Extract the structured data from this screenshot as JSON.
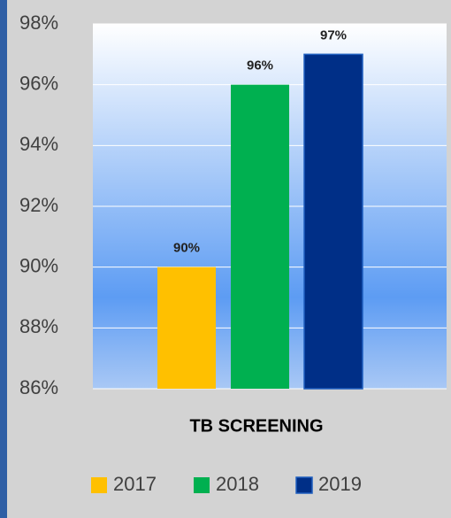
{
  "chart_data": {
    "type": "bar",
    "categories": [
      "TB SCREENING"
    ],
    "series": [
      {
        "name": "2017",
        "color": "#ffc000",
        "values": [
          90
        ],
        "value_labels": [
          "90%"
        ]
      },
      {
        "name": "2018",
        "color": "#00b050",
        "values": [
          96
        ],
        "value_labels": [
          "96%"
        ]
      },
      {
        "name": "2019",
        "color": "#002f87",
        "values": [
          97
        ],
        "value_labels": [
          "97%"
        ]
      }
    ],
    "ylim": [
      86,
      98
    ],
    "yticks": [
      {
        "value": 86,
        "label": "86%"
      },
      {
        "value": 88,
        "label": "88%"
      },
      {
        "value": 90,
        "label": "90%"
      },
      {
        "value": 92,
        "label": "92%"
      },
      {
        "value": 94,
        "label": "94%"
      },
      {
        "value": 96,
        "label": "96%"
      },
      {
        "value": 98,
        "label": "98%"
      }
    ],
    "grid": true,
    "legend": "bottom"
  }
}
